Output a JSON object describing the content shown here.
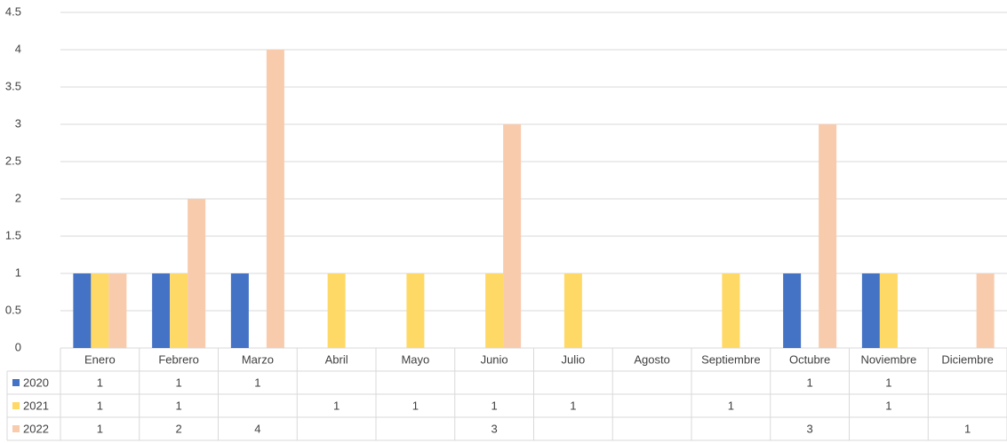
{
  "chart_data": {
    "type": "bar",
    "categories": [
      "Enero",
      "Febrero",
      "Marzo",
      "Abril",
      "Mayo",
      "Junio",
      "Julio",
      "Agosto",
      "Septiembre",
      "Octubre",
      "Noviembre",
      "Diciembre"
    ],
    "series": [
      {
        "name": "2020",
        "color": "#4472c4",
        "values": [
          1,
          1,
          1,
          null,
          null,
          null,
          null,
          null,
          null,
          1,
          1,
          null
        ]
      },
      {
        "name": "2021",
        "color": "#ffd966",
        "values": [
          1,
          1,
          null,
          1,
          1,
          1,
          1,
          null,
          1,
          null,
          1,
          null
        ]
      },
      {
        "name": "2022",
        "color": "#f8cbad",
        "values": [
          1,
          2,
          4,
          null,
          null,
          3,
          null,
          null,
          null,
          3,
          null,
          1
        ]
      }
    ],
    "ylim": [
      0,
      4.5
    ],
    "yticks": [
      0,
      0.5,
      1,
      1.5,
      2,
      2.5,
      3,
      3.5,
      4,
      4.5
    ],
    "grid": true,
    "data_table": true
  }
}
